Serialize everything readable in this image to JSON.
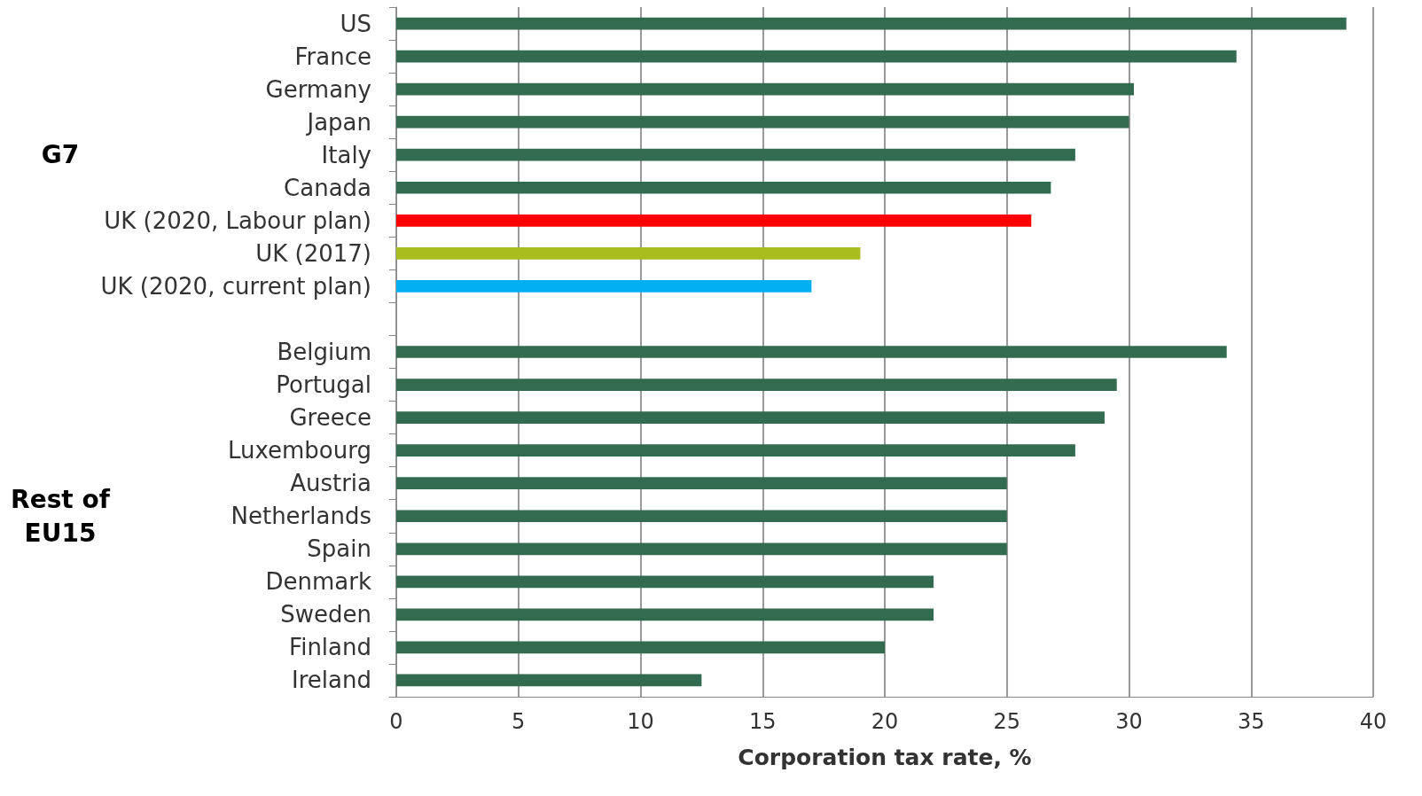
{
  "chart_data": {
    "type": "bar",
    "orientation": "horizontal",
    "xlabel": "Corporation tax rate, %",
    "categories": [
      "US",
      "France",
      "Germany",
      "Japan",
      "Italy",
      "Canada",
      "UK (2020, Labour plan)",
      "UK (2017)",
      "UK (2020, current plan)",
      null,
      "Belgium",
      "Portugal",
      "Greece",
      "Luxembourg",
      "Austria",
      "Netherlands",
      "Spain",
      "Denmark",
      "Sweden",
      "Finland",
      "Ireland"
    ],
    "values": [
      38.9,
      34.4,
      30.2,
      30,
      27.8,
      26.8,
      26,
      19,
      17,
      null,
      34,
      29.5,
      29,
      27.8,
      25,
      25,
      25,
      22,
      22,
      20,
      12.5
    ],
    "colors": [
      "#336b51",
      "#336b51",
      "#336b51",
      "#336b51",
      "#336b51",
      "#336b51",
      "#ff0000",
      "#a9bd1f",
      "#00b0f0",
      null,
      "#336b51",
      "#336b51",
      "#336b51",
      "#336b51",
      "#336b51",
      "#336b51",
      "#336b51",
      "#336b51",
      "#336b51",
      "#336b51",
      "#336b51"
    ],
    "xlim": [
      0,
      40
    ],
    "xticks": [
      0,
      5,
      10,
      15,
      20,
      25,
      30,
      35,
      40
    ],
    "grid": "x",
    "annotations": [
      "G7",
      "Rest of\nEU15"
    ]
  }
}
